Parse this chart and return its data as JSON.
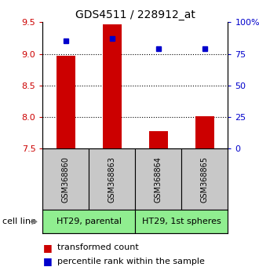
{
  "title": "GDS4511 / 228912_at",
  "samples": [
    "GSM368860",
    "GSM368863",
    "GSM368864",
    "GSM368865"
  ],
  "transformed_counts": [
    8.97,
    9.47,
    7.78,
    8.02
  ],
  "percentile_ranks": [
    85,
    87,
    79,
    79
  ],
  "ylim_left": [
    7.5,
    9.5
  ],
  "ylim_right": [
    0,
    100
  ],
  "yticks_left": [
    7.5,
    8.0,
    8.5,
    9.0,
    9.5
  ],
  "yticks_right": [
    0,
    25,
    50,
    75,
    100
  ],
  "ytick_labels_right": [
    "0",
    "25",
    "50",
    "75",
    "100%"
  ],
  "cell_lines": [
    "HT29, parental",
    "HT29, 1st spheres"
  ],
  "cell_line_groups": [
    [
      0,
      1
    ],
    [
      2,
      3
    ]
  ],
  "cell_line_colors": [
    "#90EE90",
    "#90EE90"
  ],
  "sample_box_color": "#C8C8C8",
  "bar_color": "#CC0000",
  "dot_color": "#0000CC",
  "bar_bottom": 7.5,
  "bar_width": 0.4,
  "legend_red_label": "transformed count",
  "legend_blue_label": "percentile rank within the sample",
  "cell_line_label": "cell line",
  "grid_lines": [
    8.0,
    8.5,
    9.0
  ],
  "title_fontsize": 10,
  "tick_fontsize": 8,
  "sample_fontsize": 7,
  "cell_fontsize": 8,
  "legend_fontsize": 8
}
